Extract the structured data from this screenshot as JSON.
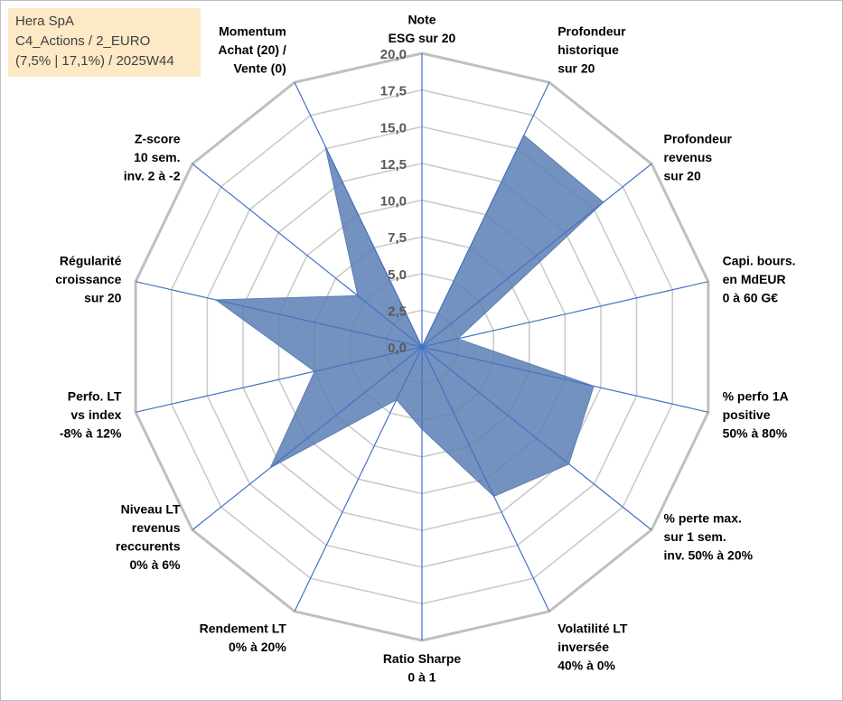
{
  "header": {
    "line1": "Hera SpA",
    "line2": "C4_Actions / 2_EURO",
    "line3": "(7,5% | 17,1%) / 2025W44"
  },
  "chart_data": {
    "type": "radar",
    "r_max": 20,
    "r_ticks": [
      "0,0",
      "2,5",
      "5,0",
      "7,5",
      "10,0",
      "12,5",
      "15,0",
      "17,5",
      "20,0"
    ],
    "grid": true,
    "axes": [
      {
        "label": [
          "Note",
          "ESG sur 20"
        ],
        "value": 0
      },
      {
        "label": [
          "Profondeur",
          "historique",
          "sur 20"
        ],
        "value": 16
      },
      {
        "label": [
          "Profondeur",
          "revenus",
          "sur 20"
        ],
        "value": 15.8
      },
      {
        "label": [
          "Capi. bours.",
          "en MdEUR",
          "0 à 60 G€"
        ],
        "value": 2.5
      },
      {
        "label": [
          "% perfo 1A",
          "positive",
          "50% à 80%"
        ],
        "value": 12
      },
      {
        "label": [
          "% perte max.",
          "sur 1 sem.",
          "inv. 50% à 20%"
        ],
        "value": 12.8
      },
      {
        "label": [
          "Volatilité LT",
          "inversée",
          "40% à 0%"
        ],
        "value": 11.3
      },
      {
        "label": [
          "Ratio Sharpe",
          "0 à 1"
        ],
        "value": 5.6
      },
      {
        "label": [
          "Rendement LT",
          "0% à 20%"
        ],
        "value": 4
      },
      {
        "label": [
          "Niveau LT",
          "revenus",
          "reccurents",
          "0% à 6%"
        ],
        "value": 13.2
      },
      {
        "label": [
          "Perfo. LT",
          "vs index",
          "-8% à 12%"
        ],
        "value": 7.5
      },
      {
        "label": [
          "Régularité",
          "croissance",
          "sur 20"
        ],
        "value": 14.4
      },
      {
        "label": [
          "Z-score",
          "10 sem.",
          "inv. 2 à -2"
        ],
        "value": 5.6
      },
      {
        "label": [
          "Momentum",
          "Achat (20) /",
          "Vente (0)"
        ],
        "value": 15.2
      }
    ],
    "colors": {
      "fill": "#5b7fb4",
      "axis_line": "#4472c4",
      "grid": "#c8c8c8",
      "outer_grid": "#bfbfbf"
    }
  }
}
